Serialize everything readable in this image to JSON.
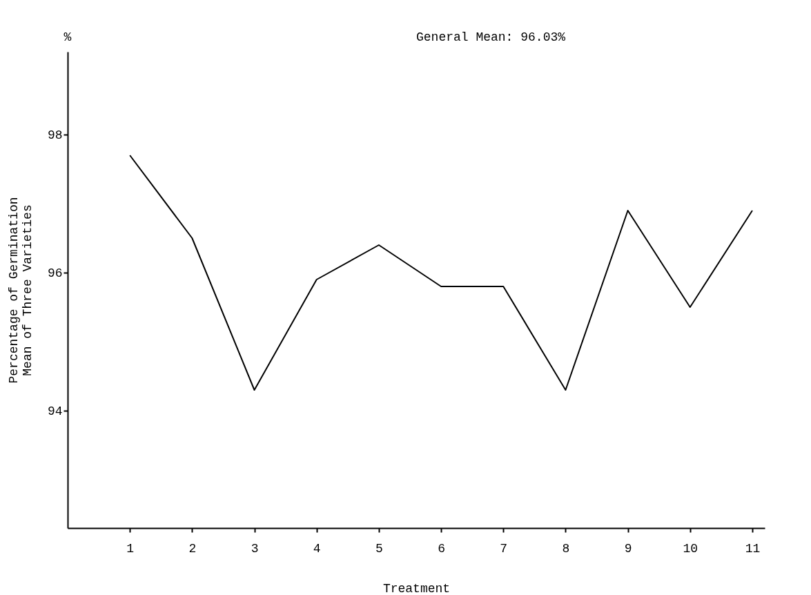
{
  "chart_data": {
    "type": "line",
    "xlabel": "Treatment",
    "ylabel": "Percentage of Germination\nMean of Three Varieties",
    "annotations": [
      "%",
      "General Mean:  96.03%"
    ],
    "x": [
      1,
      2,
      3,
      4,
      5,
      6,
      7,
      8,
      9,
      10,
      11
    ],
    "series": [
      {
        "color": "#000000",
        "values": [
          97.7,
          96.5,
          94.3,
          95.9,
          96.4,
          95.8,
          95.8,
          94.3,
          96.9,
          95.5,
          96.9
        ]
      }
    ],
    "xlim": [
      0,
      11.2
    ],
    "xticks": [
      1,
      2,
      3,
      4,
      5,
      6,
      7,
      8,
      9,
      10,
      11
    ],
    "ylim": [
      92.3,
      99.2
    ],
    "yticks": [
      94,
      96,
      98
    ],
    "grid": false,
    "legend": false,
    "marker": "none",
    "line_style": "solid"
  }
}
